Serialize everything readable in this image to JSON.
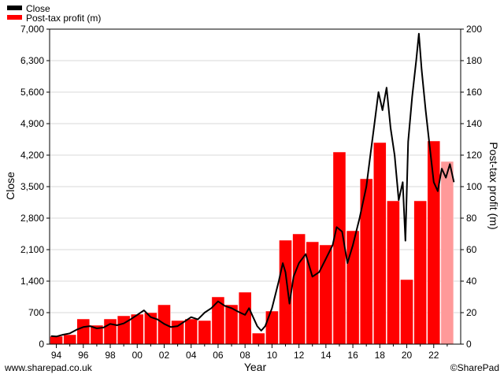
{
  "chart_data": {
    "type": "bar+line",
    "xlabel": "Year",
    "ylabel_left": "Close",
    "ylabel_right": "Post-tax profit (m)",
    "ylim_left": [
      0,
      7000
    ],
    "ylim_right": [
      0,
      200
    ],
    "yticks_left": [
      "0",
      "700",
      "1,400",
      "2,100",
      "2,800",
      "3,500",
      "4,200",
      "4,900",
      "5,600",
      "6,300",
      "7,000"
    ],
    "yticks_left_values": [
      0,
      700,
      1400,
      2100,
      2800,
      3500,
      4200,
      4900,
      5600,
      6300,
      7000
    ],
    "yticks_right": [
      "0",
      "20",
      "40",
      "60",
      "80",
      "100",
      "120",
      "140",
      "160",
      "180",
      "200"
    ],
    "yticks_right_values": [
      0,
      20,
      40,
      60,
      80,
      100,
      120,
      140,
      160,
      180,
      200
    ],
    "xticks": [
      "94",
      "96",
      "98",
      "00",
      "02",
      "04",
      "06",
      "08",
      "10",
      "12",
      "14",
      "16",
      "18",
      "20",
      "22"
    ],
    "xticks_values": [
      1994,
      1996,
      1998,
      2000,
      2002,
      2004,
      2006,
      2008,
      2010,
      2012,
      2014,
      2016,
      2018,
      2020,
      2022
    ],
    "grid": "horizontal",
    "legend_position": "top-left",
    "colors": {
      "close": "#000000",
      "profit": "#ff0000",
      "profit_forecast": "#ff9999"
    },
    "series": [
      {
        "name": "Close",
        "type": "line",
        "axis": "left",
        "x": [
          1993.6,
          1994.0,
          1994.5,
          1995.0,
          1995.5,
          1996.0,
          1996.5,
          1997.0,
          1997.5,
          1998.0,
          1998.5,
          1999.0,
          1999.5,
          2000.0,
          2000.5,
          2001.0,
          2001.5,
          2002.0,
          2002.5,
          2003.0,
          2003.5,
          2004.0,
          2004.5,
          2005.0,
          2005.5,
          2006.0,
          2006.5,
          2007.0,
          2007.5,
          2008.0,
          2008.3,
          2008.6,
          2008.9,
          2009.2,
          2009.5,
          2010.0,
          2010.5,
          2010.8,
          2011.0,
          2011.3,
          2011.6,
          2012.0,
          2012.5,
          2013.0,
          2013.5,
          2014.0,
          2014.5,
          2014.8,
          2015.2,
          2015.6,
          2016.0,
          2016.5,
          2017.0,
          2017.3,
          2017.6,
          2017.9,
          2018.2,
          2018.5,
          2018.8,
          2019.1,
          2019.4,
          2019.7,
          2019.9,
          2020.1,
          2020.4,
          2020.7,
          2020.9,
          2021.1,
          2021.4,
          2021.7,
          2022.0,
          2022.3,
          2022.6,
          2022.9,
          2023.2,
          2023.5
        ],
        "y": [
          180,
          170,
          210,
          240,
          320,
          380,
          400,
          350,
          370,
          450,
          420,
          460,
          550,
          650,
          750,
          600,
          550,
          450,
          380,
          400,
          500,
          600,
          550,
          700,
          800,
          950,
          850,
          800,
          720,
          650,
          800,
          600,
          400,
          300,
          400,
          800,
          1400,
          1800,
          1600,
          900,
          1500,
          1800,
          2000,
          1500,
          1600,
          1900,
          2200,
          2600,
          2500,
          1800,
          2200,
          2800,
          3500,
          4200,
          4900,
          5600,
          5200,
          5700,
          4800,
          4200,
          3200,
          3600,
          2300,
          4500,
          5500,
          6300,
          6900,
          6100,
          5200,
          4400,
          3600,
          3400,
          3900,
          3700,
          4000,
          3600
        ]
      },
      {
        "name": "Post-tax profit (m)",
        "type": "bar",
        "axis": "right",
        "x": [
          1994,
          1995,
          1996,
          1997,
          1998,
          1999,
          2000,
          2001,
          2002,
          2003,
          2004,
          2005,
          2006,
          2007,
          2008,
          2009,
          2010,
          2011,
          2012,
          2013,
          2014,
          2015,
          2016,
          2017,
          2018,
          2019,
          2020,
          2021,
          2022,
          2023
        ],
        "values": [
          5,
          6,
          16,
          12,
          16,
          18,
          19,
          20,
          25,
          15,
          16,
          15,
          30,
          25,
          33,
          7,
          21,
          66,
          70,
          65,
          63,
          122,
          72,
          105,
          128,
          91,
          41,
          91,
          129,
          116
        ],
        "forecast_index": 29
      }
    ],
    "legend": [
      {
        "label": "Close",
        "key": "close"
      },
      {
        "label": "Post-tax profit (m)",
        "key": "profit"
      }
    ]
  },
  "footer": {
    "left": "www.sharepad.co.uk",
    "right": "©SharePad"
  }
}
